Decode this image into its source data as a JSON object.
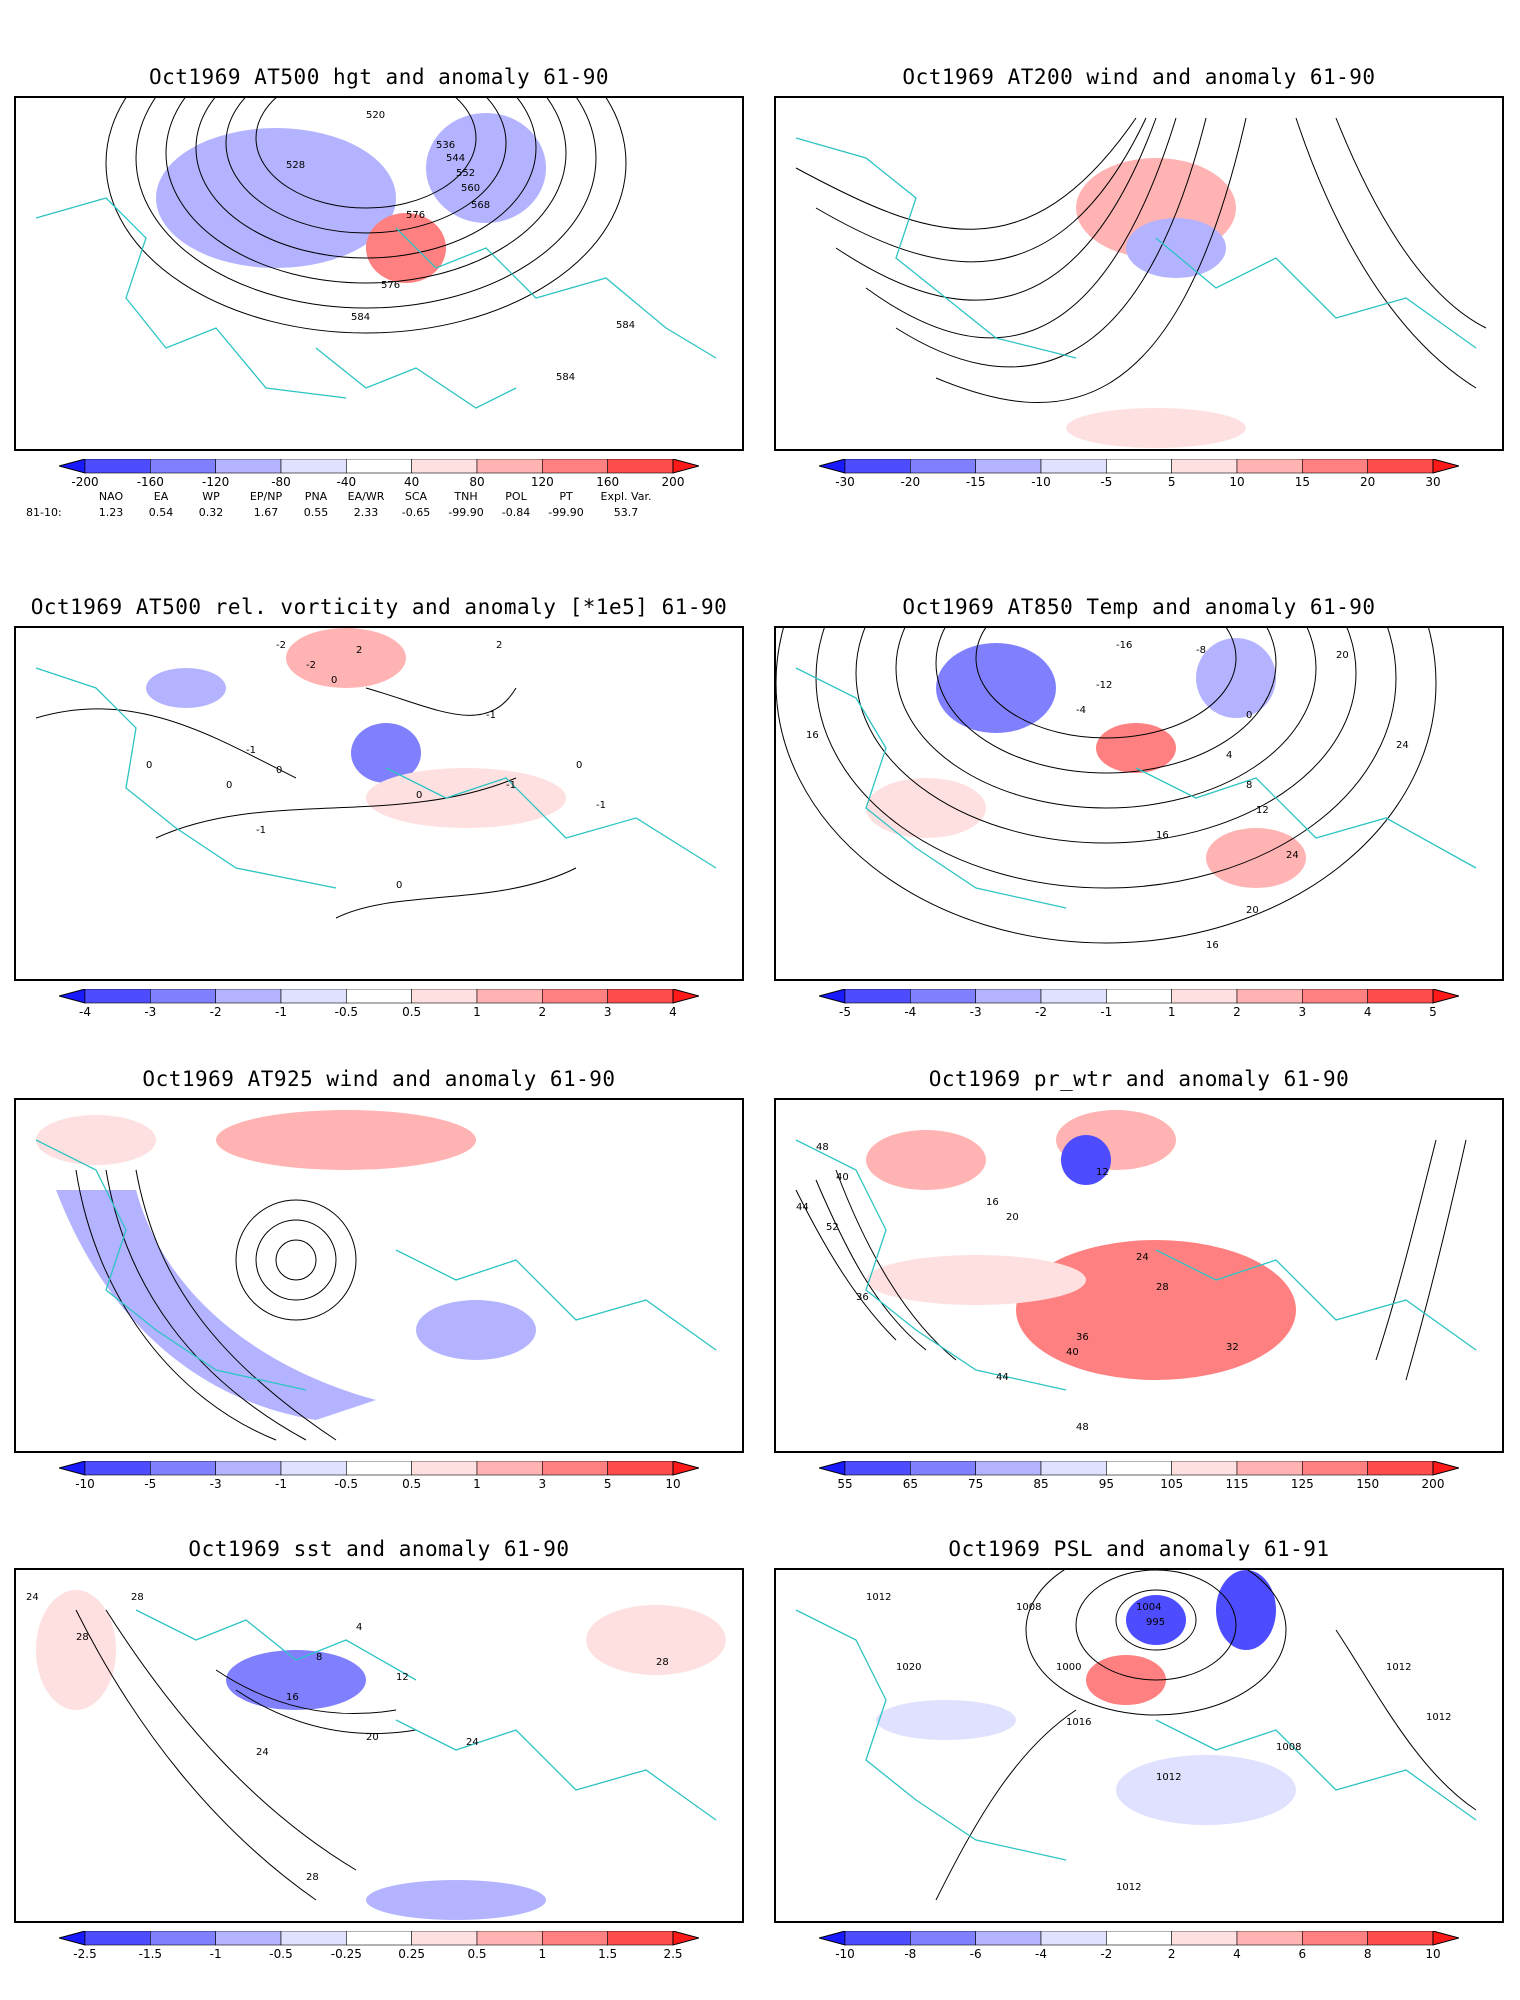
{
  "panels": [
    {
      "id": "p1",
      "title": "Oct1969 AT500 hgt and anomaly 61-90",
      "colorbar": {
        "levels": [
          "-200",
          "-160",
          "-120",
          "-80",
          "-40",
          "40",
          "80",
          "120",
          "160",
          "200"
        ],
        "colors": [
          "#1a1aff",
          "#4d4dff",
          "#8080ff",
          "#b3b3ff",
          "#e0e0ff",
          "#ffffff",
          "#ffe0e0",
          "#ffb3b3",
          "#ff8080",
          "#ff4d4d",
          "#ff1a1a"
        ]
      },
      "contour_labels": [
        "520",
        "528",
        "536",
        "544",
        "552",
        "560",
        "568",
        "576",
        "576",
        "584",
        "584",
        "584"
      ]
    },
    {
      "id": "p2",
      "title": "Oct1969 AT200 wind and anomaly 61-90",
      "colorbar": {
        "levels": [
          "-30",
          "-20",
          "-15",
          "-10",
          "-5",
          "5",
          "10",
          "15",
          "20",
          "30"
        ],
        "colors": [
          "#1a1aff",
          "#4d4dff",
          "#8080ff",
          "#b3b3ff",
          "#e0e0ff",
          "#ffffff",
          "#ffe0e0",
          "#ffb3b3",
          "#ff8080",
          "#ff4d4d",
          "#ff1a1a"
        ]
      },
      "contour_labels": []
    },
    {
      "id": "p3",
      "title": "Oct1969 AT500 rel. vorticity and anomaly [*1e5] 61-90",
      "colorbar": {
        "levels": [
          "-4",
          "-3",
          "-2",
          "-1",
          "-0.5",
          "0.5",
          "1",
          "2",
          "3",
          "4"
        ],
        "colors": [
          "#1a1aff",
          "#4d4dff",
          "#8080ff",
          "#b3b3ff",
          "#e0e0ff",
          "#ffffff",
          "#ffe0e0",
          "#ffb3b3",
          "#ff8080",
          "#ff4d4d",
          "#ff1a1a"
        ]
      },
      "contour_labels": [
        "-2",
        "-2",
        "2",
        "0",
        "2",
        "-1",
        "-1",
        "0",
        "0",
        "0",
        "-1",
        "-1",
        "0",
        "0",
        "0",
        "-1"
      ]
    },
    {
      "id": "p4",
      "title": "Oct1969 AT850 Temp and anomaly 61-90",
      "colorbar": {
        "levels": [
          "-5",
          "-4",
          "-3",
          "-2",
          "-1",
          "1",
          "2",
          "3",
          "4",
          "5"
        ],
        "colors": [
          "#1a1aff",
          "#4d4dff",
          "#8080ff",
          "#b3b3ff",
          "#e0e0ff",
          "#ffffff",
          "#ffe0e0",
          "#ffb3b3",
          "#ff8080",
          "#ff4d4d",
          "#ff1a1a"
        ]
      },
      "contour_labels": [
        "-16",
        "-12",
        "-8",
        "-4",
        "0",
        "4",
        "8",
        "12",
        "16",
        "16",
        "20",
        "24",
        "24",
        "20",
        "16"
      ]
    },
    {
      "id": "p5",
      "title": "Oct1969 AT925 wind and anomaly 61-90",
      "colorbar": {
        "levels": [
          "-10",
          "-5",
          "-3",
          "-1",
          "-0.5",
          "0.5",
          "1",
          "3",
          "5",
          "10"
        ],
        "colors": [
          "#1a1aff",
          "#4d4dff",
          "#8080ff",
          "#b3b3ff",
          "#e0e0ff",
          "#ffffff",
          "#ffe0e0",
          "#ffb3b3",
          "#ff8080",
          "#ff4d4d",
          "#ff1a1a"
        ]
      },
      "contour_labels": []
    },
    {
      "id": "p6",
      "title": "Oct1969 pr_wtr and anomaly 61-90",
      "colorbar": {
        "levels": [
          "55",
          "65",
          "75",
          "85",
          "95",
          "105",
          "115",
          "125",
          "150",
          "200"
        ],
        "colors": [
          "#1a1aff",
          "#4d4dff",
          "#8080ff",
          "#b3b3ff",
          "#e0e0ff",
          "#ffffff",
          "#ffe0e0",
          "#ffb3b3",
          "#ff8080",
          "#ff4d4d",
          "#ff1a1a"
        ]
      },
      "contour_labels": [
        "48",
        "40",
        "44",
        "52",
        "36",
        "12",
        "16",
        "20",
        "24",
        "28",
        "32",
        "36",
        "40",
        "44",
        "48"
      ]
    },
    {
      "id": "p7",
      "title": "Oct1969 sst and anomaly 61-90",
      "colorbar": {
        "levels": [
          "-2.5",
          "-1.5",
          "-1",
          "-0.5",
          "-0.25",
          "0.25",
          "0.5",
          "1",
          "1.5",
          "2.5"
        ],
        "colors": [
          "#1a1aff",
          "#4d4dff",
          "#8080ff",
          "#b3b3ff",
          "#e0e0ff",
          "#ffffff",
          "#ffe0e0",
          "#ffb3b3",
          "#ff8080",
          "#ff4d4d",
          "#ff1a1a"
        ]
      },
      "contour_labels": [
        "24",
        "28",
        "28",
        "4",
        "8",
        "12",
        "16",
        "20",
        "24",
        "24",
        "28",
        "28"
      ]
    },
    {
      "id": "p8",
      "title": "Oct1969 PSL and anomaly 61-91",
      "colorbar": {
        "levels": [
          "-10",
          "-8",
          "-6",
          "-4",
          "-2",
          "2",
          "4",
          "6",
          "8",
          "10"
        ],
        "colors": [
          "#1a1aff",
          "#4d4dff",
          "#8080ff",
          "#b3b3ff",
          "#e0e0ff",
          "#ffffff",
          "#ffe0e0",
          "#ffb3b3",
          "#ff8080",
          "#ff4d4d",
          "#ff1a1a"
        ]
      },
      "contour_labels": [
        "1012",
        "1008",
        "1004",
        "1000",
        "995",
        "1020",
        "1016",
        "1012",
        "1008",
        "1012",
        "1012",
        "1012"
      ]
    }
  ],
  "index_table": {
    "headers": [
      "NAO",
      "EA",
      "WP",
      "EP/NP",
      "PNA",
      "EA/WR",
      "SCA",
      "TNH",
      "POL",
      "PT",
      "Expl. Var."
    ],
    "row_label": "81-10:",
    "values": [
      "1.23",
      "0.54",
      "0.32",
      "1.67",
      "0.55",
      "2.33",
      "-0.65",
      "-99.90",
      "-0.84",
      "-99.90",
      "53.7"
    ]
  }
}
